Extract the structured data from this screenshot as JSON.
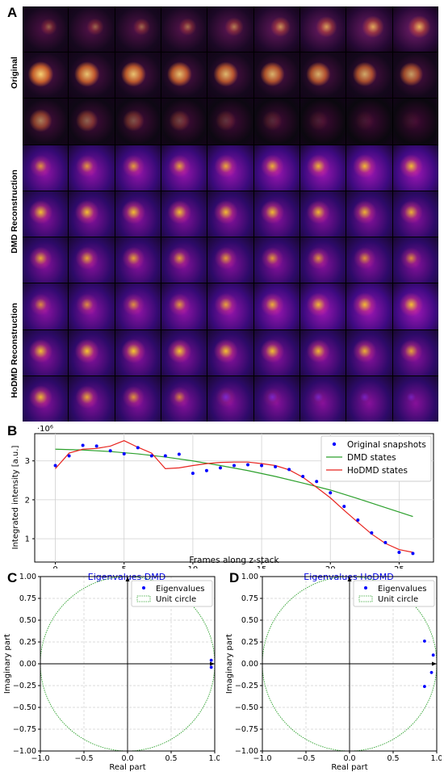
{
  "panels": {
    "A": "A",
    "B": "B",
    "C": "C",
    "D": "D"
  },
  "image_grid": {
    "row_groups": [
      "Original",
      "DMD Reconstruction",
      "HoDMD Reconstruction"
    ],
    "columns": 9,
    "rows_per_group": 3
  },
  "chart_data": [
    {
      "type": "scatter+line",
      "exponent_label": "·10⁶",
      "xlabel": "Frames along z-stack",
      "ylabel": "Integrated intensity [a.u.]",
      "xlim": [
        -1.5,
        27.5
      ],
      "ylim": [
        0.4,
        3.7
      ],
      "xticks": [
        0,
        5,
        10,
        15,
        20,
        25
      ],
      "yticks": [
        1,
        2,
        3
      ],
      "grid": true,
      "legend_position": "top-right",
      "series": [
        {
          "name": "Original snapshots",
          "kind": "points",
          "color": "#0000ff",
          "x": [
            0,
            1,
            2,
            3,
            4,
            5,
            6,
            7,
            8,
            9,
            10,
            11,
            12,
            13,
            14,
            15,
            16,
            17,
            18,
            19,
            20,
            21,
            22,
            23,
            24,
            25,
            26
          ],
          "y": [
            2.88,
            3.13,
            3.4,
            3.38,
            3.26,
            3.18,
            3.34,
            3.13,
            3.13,
            3.17,
            2.68,
            2.75,
            2.82,
            2.88,
            2.9,
            2.88,
            2.85,
            2.78,
            2.6,
            2.47,
            2.18,
            1.83,
            1.48,
            1.15,
            0.9,
            0.65,
            0.62
          ]
        },
        {
          "name": "DMD states",
          "kind": "line",
          "color": "#2ca02c",
          "x": [
            0,
            2,
            4,
            6,
            8,
            10,
            12,
            14,
            16,
            18,
            20,
            22,
            24,
            26
          ],
          "y": [
            3.3,
            3.28,
            3.24,
            3.18,
            3.1,
            3.0,
            2.88,
            2.75,
            2.6,
            2.43,
            2.25,
            2.03,
            1.8,
            1.57
          ]
        },
        {
          "name": "HoDMD states",
          "kind": "line",
          "color": "#e8231e",
          "x": [
            0,
            1,
            2,
            3,
            4,
            5,
            6,
            7,
            8,
            9,
            10,
            11,
            12,
            13,
            14,
            15,
            16,
            17,
            18,
            19,
            20,
            21,
            22,
            23,
            24,
            25,
            26
          ],
          "y": [
            2.8,
            3.2,
            3.3,
            3.32,
            3.38,
            3.52,
            3.35,
            3.2,
            2.8,
            2.82,
            2.88,
            2.93,
            2.96,
            2.97,
            2.97,
            2.93,
            2.88,
            2.77,
            2.58,
            2.32,
            2.05,
            1.73,
            1.42,
            1.12,
            0.88,
            0.72,
            0.65
          ]
        }
      ]
    },
    {
      "type": "scatter",
      "title": "Eigenvalues DMD",
      "xlabel": "Real part",
      "ylabel": "Imaginary part",
      "xlim": [
        -1.0,
        1.0
      ],
      "ylim": [
        -1.0,
        1.0
      ],
      "xticks": [
        "−1.0",
        "−0.5",
        "0.0",
        "0.5",
        "1.0"
      ],
      "yticks": [
        "1.00",
        "0.75",
        "0.50",
        "0.25",
        "0.00",
        "−0.25",
        "−0.50",
        "−0.75",
        "−1.00"
      ],
      "grid": true,
      "legend_position": "top-right",
      "series": [
        {
          "name": "Eigenvalues",
          "kind": "points",
          "color": "#0000ff",
          "x": [
            0.96,
            0.96
          ],
          "y": [
            0.04,
            -0.04
          ]
        },
        {
          "name": "Unit circle",
          "kind": "circle",
          "color": "#2ca02c",
          "radius": 1.0
        }
      ]
    },
    {
      "type": "scatter",
      "title": "Eigenvalues HoDMD",
      "xlabel": "Real part",
      "ylabel": "Imaginary part",
      "xlim": [
        -1.0,
        1.0
      ],
      "ylim": [
        -1.0,
        1.0
      ],
      "xticks": [
        "−1.0",
        "−0.5",
        "0.0",
        "0.5",
        "1.0"
      ],
      "yticks": [
        "1.00",
        "0.75",
        "0.50",
        "0.25",
        "0.00",
        "−0.25",
        "−0.50",
        "−0.75",
        "−1.00"
      ],
      "grid": true,
      "legend_position": "top-right",
      "series": [
        {
          "name": "Eigenvalues",
          "kind": "points",
          "color": "#0000ff",
          "x": [
            0.86,
            0.96,
            0.94,
            0.86
          ],
          "y": [
            0.26,
            0.1,
            -0.1,
            -0.26
          ]
        },
        {
          "name": "Unit circle",
          "kind": "circle",
          "color": "#2ca02c",
          "radius": 1.0
        }
      ]
    }
  ]
}
